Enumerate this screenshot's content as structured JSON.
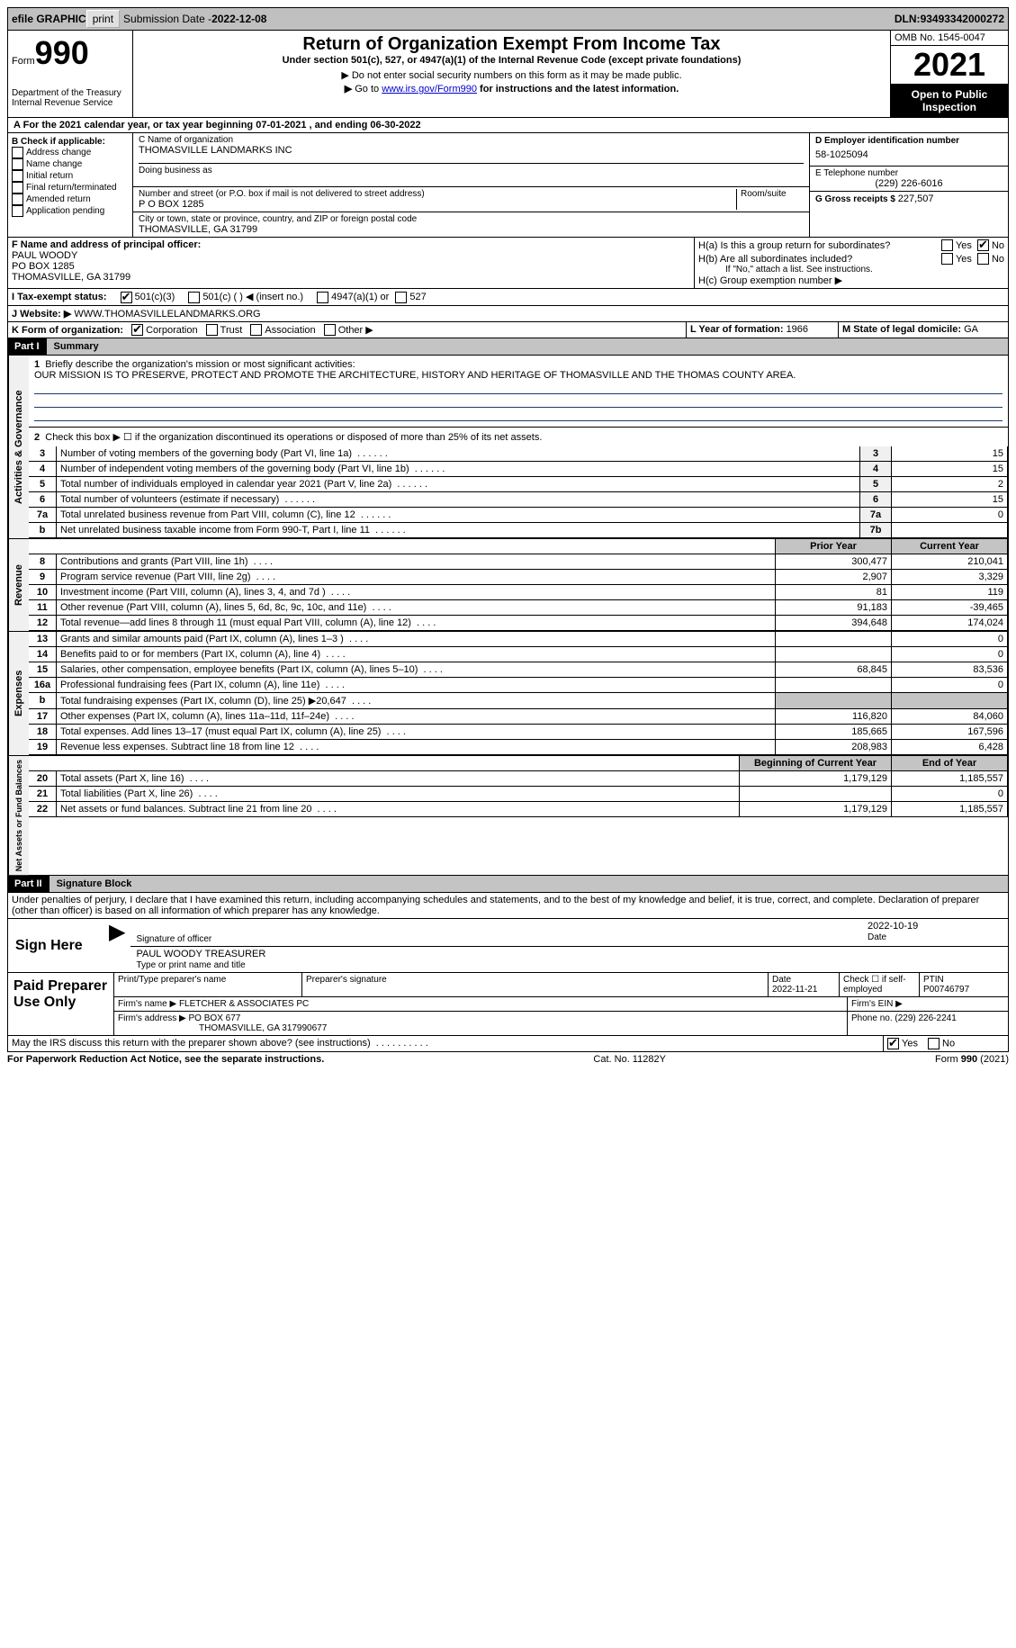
{
  "topbar": {
    "efile": "efile GRAPHIC",
    "print": "print",
    "sub_label": "Submission Date - ",
    "sub_date": "2022-12-08",
    "dln_label": "DLN: ",
    "dln": "93493342000272"
  },
  "header": {
    "form_word": "Form",
    "form_num": "990",
    "dept": "Department of the Treasury\nInternal Revenue Service",
    "title": "Return of Organization Exempt From Income Tax",
    "subtitle": "Under section 501(c), 527, or 4947(a)(1) of the Internal Revenue Code (except private foundations)",
    "note1": "Do not enter social security numbers on this form as it may be made public.",
    "note2_a": "Go to ",
    "note2_link": "www.irs.gov/Form990",
    "note2_b": " for instructions and the latest information.",
    "omb": "OMB No. 1545-0047",
    "year": "2021",
    "open": "Open to Public Inspection"
  },
  "sectionA": {
    "text_a": "For the 2021 calendar year, or tax year beginning ",
    "begin": "07-01-2021",
    "text_b": " , and ending ",
    "end": "06-30-2022"
  },
  "colB": {
    "label": "B Check if applicable:",
    "opts": [
      "Address change",
      "Name change",
      "Initial return",
      "Final return/terminated",
      "Amended return",
      "Application pending"
    ]
  },
  "colC": {
    "name_label": "C Name of organization",
    "name": "THOMASVILLE LANDMARKS INC",
    "dba_label": "Doing business as",
    "addr_label": "Number and street (or P.O. box if mail is not delivered to street address)",
    "room_label": "Room/suite",
    "addr": "P O BOX 1285",
    "city_label": "City or town, state or province, country, and ZIP or foreign postal code",
    "city": "THOMASVILLE, GA  31799"
  },
  "colD": {
    "ein_label": "D Employer identification number",
    "ein": "58-1025094",
    "tel_label": "E Telephone number",
    "tel": "(229) 226-6016",
    "gross_label": "G Gross receipts $ ",
    "gross": "227,507"
  },
  "rowF": {
    "label": "F Name and address of principal officer:",
    "name": "PAUL WOODY",
    "addr1": "PO BOX 1285",
    "addr2": "THOMASVILLE, GA  31799"
  },
  "rowH": {
    "ha": "H(a)  Is this a group return for subordinates?",
    "hb": "H(b)  Are all subordinates included?",
    "hb_note": "If \"No,\" attach a list. See instructions.",
    "hc": "H(c)  Group exemption number ▶",
    "yes": "Yes",
    "no": "No"
  },
  "rowI": {
    "label": "I   Tax-exempt status:",
    "o1": "501(c)(3)",
    "o2": "501(c) (  ) ◀ (insert no.)",
    "o3": "4947(a)(1) or",
    "o4": "527"
  },
  "rowJ": {
    "label": "J   Website: ▶",
    "val": "WWW.THOMASVILLELANDMARKS.ORG"
  },
  "rowK": {
    "label": "K Form of organization:",
    "o1": "Corporation",
    "o2": "Trust",
    "o3": "Association",
    "o4": "Other ▶"
  },
  "rowL": {
    "label": "L Year of formation: ",
    "val": "1966"
  },
  "rowM": {
    "label": "M State of legal domicile: ",
    "val": "GA"
  },
  "parts": {
    "p1": "Part I",
    "p1t": "Summary",
    "p2": "Part II",
    "p2t": "Signature Block"
  },
  "summary": {
    "l1_label": "Briefly describe the organization's mission or most significant activities:",
    "l1_text": "OUR MISSION IS TO PRESERVE, PROTECT AND PROMOTE THE ARCHITECTURE, HISTORY AND HERITAGE OF THOMASVILLE AND THE THOMAS COUNTY AREA.",
    "l2": "Check this box ▶ ☐ if the organization discontinued its operations or disposed of more than 25% of its net assets.",
    "lines_gov": [
      {
        "n": "3",
        "t": "Number of voting members of the governing body (Part VI, line 1a)",
        "box": "3",
        "v": "15"
      },
      {
        "n": "4",
        "t": "Number of independent voting members of the governing body (Part VI, line 1b)",
        "box": "4",
        "v": "15"
      },
      {
        "n": "5",
        "t": "Total number of individuals employed in calendar year 2021 (Part V, line 2a)",
        "box": "5",
        "v": "2"
      },
      {
        "n": "6",
        "t": "Total number of volunteers (estimate if necessary)",
        "box": "6",
        "v": "15"
      },
      {
        "n": "7a",
        "t": "Total unrelated business revenue from Part VIII, column (C), line 12",
        "box": "7a",
        "v": "0"
      },
      {
        "n": "b",
        "t": "Net unrelated business taxable income from Form 990-T, Part I, line 11",
        "box": "7b",
        "v": ""
      }
    ],
    "col_prior": "Prior Year",
    "col_curr": "Current Year",
    "col_begin": "Beginning of Current Year",
    "col_end": "End of Year",
    "rev": [
      {
        "n": "8",
        "t": "Contributions and grants (Part VIII, line 1h)",
        "p": "300,477",
        "c": "210,041"
      },
      {
        "n": "9",
        "t": "Program service revenue (Part VIII, line 2g)",
        "p": "2,907",
        "c": "3,329"
      },
      {
        "n": "10",
        "t": "Investment income (Part VIII, column (A), lines 3, 4, and 7d )",
        "p": "81",
        "c": "119"
      },
      {
        "n": "11",
        "t": "Other revenue (Part VIII, column (A), lines 5, 6d, 8c, 9c, 10c, and 11e)",
        "p": "91,183",
        "c": "-39,465"
      },
      {
        "n": "12",
        "t": "Total revenue—add lines 8 through 11 (must equal Part VIII, column (A), line 12)",
        "p": "394,648",
        "c": "174,024"
      }
    ],
    "exp": [
      {
        "n": "13",
        "t": "Grants and similar amounts paid (Part IX, column (A), lines 1–3 )",
        "p": "",
        "c": "0"
      },
      {
        "n": "14",
        "t": "Benefits paid to or for members (Part IX, column (A), line 4)",
        "p": "",
        "c": "0"
      },
      {
        "n": "15",
        "t": "Salaries, other compensation, employee benefits (Part IX, column (A), lines 5–10)",
        "p": "68,845",
        "c": "83,536"
      },
      {
        "n": "16a",
        "t": "Professional fundraising fees (Part IX, column (A), line 11e)",
        "p": "",
        "c": "0"
      },
      {
        "n": "b",
        "t": "Total fundraising expenses (Part IX, column (D), line 25) ▶20,647",
        "p": "SHADE",
        "c": "SHADE"
      },
      {
        "n": "17",
        "t": "Other expenses (Part IX, column (A), lines 11a–11d, 11f–24e)",
        "p": "116,820",
        "c": "84,060"
      },
      {
        "n": "18",
        "t": "Total expenses. Add lines 13–17 (must equal Part IX, column (A), line 25)",
        "p": "185,665",
        "c": "167,596"
      },
      {
        "n": "19",
        "t": "Revenue less expenses. Subtract line 18 from line 12",
        "p": "208,983",
        "c": "6,428"
      }
    ],
    "net": [
      {
        "n": "20",
        "t": "Total assets (Part X, line 16)",
        "p": "1,179,129",
        "c": "1,185,557"
      },
      {
        "n": "21",
        "t": "Total liabilities (Part X, line 26)",
        "p": "",
        "c": "0"
      },
      {
        "n": "22",
        "t": "Net assets or fund balances. Subtract line 21 from line 20",
        "p": "1,179,129",
        "c": "1,185,557"
      }
    ],
    "vlabels": {
      "gov": "Activities & Governance",
      "rev": "Revenue",
      "exp": "Expenses",
      "net": "Net Assets or Fund Balances"
    }
  },
  "sig": {
    "decl": "Under penalties of perjury, I declare that I have examined this return, including accompanying schedules and statements, and to the best of my knowledge and belief, it is true, correct, and complete. Declaration of preparer (other than officer) is based on all information of which preparer has any knowledge.",
    "here": "Sign Here",
    "sig_label": "Signature of officer",
    "date_label": "Date",
    "date": "2022-10-19",
    "name": "PAUL WOODY TREASURER",
    "name_label": "Type or print name and title"
  },
  "prep": {
    "label": "Paid Preparer Use Only",
    "c1": "Print/Type preparer's name",
    "c2": "Preparer's signature",
    "c3": "Date",
    "c3v": "2022-11-21",
    "c4a": "Check ☐ if self-employed",
    "c5": "PTIN",
    "c5v": "P00746797",
    "firm_label": "Firm's name    ▶",
    "firm": "FLETCHER & ASSOCIATES PC",
    "ein_label": "Firm's EIN ▶",
    "addr_label": "Firm's address ▶",
    "addr1": "PO BOX 677",
    "addr2": "THOMASVILLE, GA  317990677",
    "phone_label": "Phone no. ",
    "phone": "(229) 226-2241"
  },
  "bottom": {
    "q": "May the IRS discuss this return with the preparer shown above? (see instructions)",
    "yes": "Yes",
    "no": "No",
    "pra": "For Paperwork Reduction Act Notice, see the separate instructions.",
    "cat": "Cat. No. 11282Y",
    "form": "Form 990 (2021)"
  }
}
